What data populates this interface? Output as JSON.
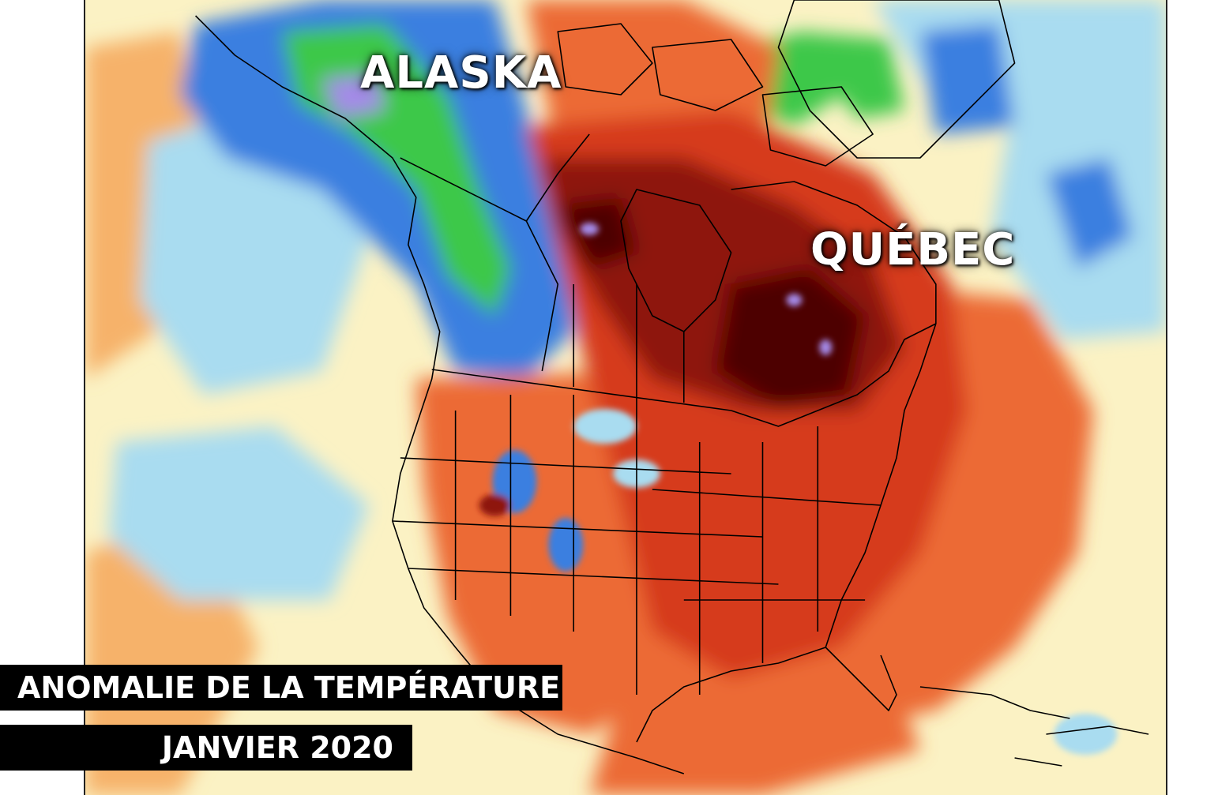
{
  "map": {
    "labels": {
      "alaska": "ALASKA",
      "quebec": "QUÉBEC"
    },
    "caption": {
      "title": "ANOMALIE DE LA TEMPÉRATURE",
      "date": "JANVIER 2020"
    },
    "colors": {
      "ocean_neutral": "#fbf2c4",
      "light_blue": "#a9dcf0",
      "blue": "#3b7fe0",
      "green": "#3cc84a",
      "purple": "#a48ae8",
      "light_orange": "#f6b26b",
      "orange": "#ec6a34",
      "red": "#d63a1e",
      "dark_red": "#8e1408",
      "darkest_red": "#4e0402",
      "border_lines": "#000000",
      "caption_background": "#000000",
      "label_text": "#ffffff"
    }
  }
}
